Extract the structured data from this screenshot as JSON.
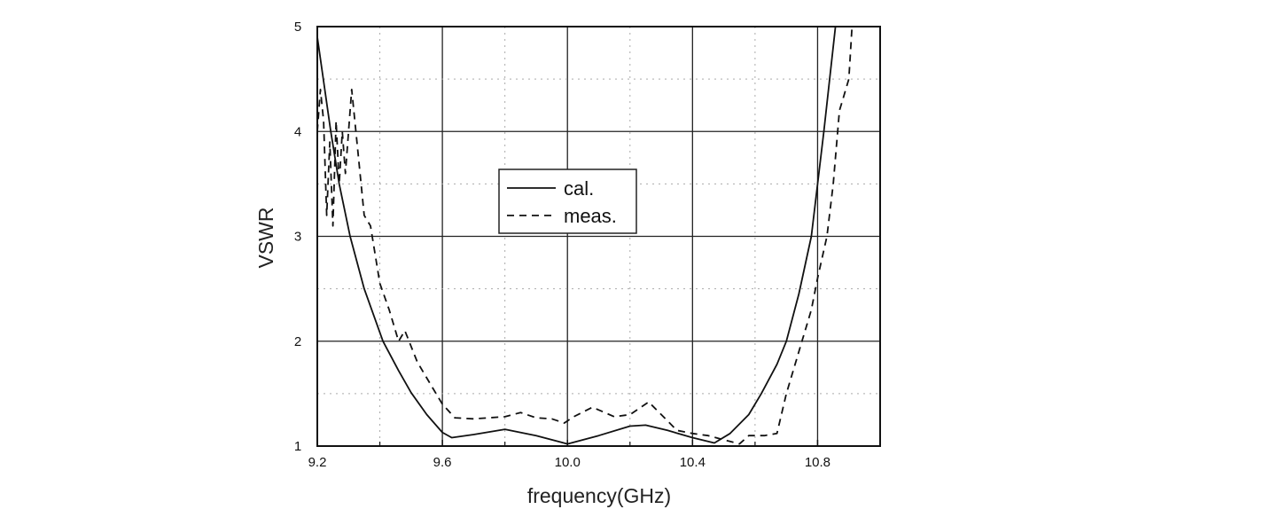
{
  "chart_data": {
    "type": "line",
    "xlabel": "frequency(GHz)",
    "ylabel": "VSWR",
    "xlim": [
      9.2,
      11.0
    ],
    "ylim": [
      1,
      5
    ],
    "xticks": [
      "9.2",
      "9.6",
      "10.0",
      "10.4",
      "10.8"
    ],
    "xtick_values": [
      9.2,
      9.6,
      10.0,
      10.4,
      10.8
    ],
    "yticks": [
      "1",
      "2",
      "3",
      "4",
      "5"
    ],
    "ytick_values": [
      1,
      2,
      3,
      4,
      5
    ],
    "grid": true,
    "minor_grid": "dotted",
    "legend_position": "center-left",
    "series": [
      {
        "name": "cal.",
        "style": "solid",
        "color": "#111111",
        "x": [
          9.2,
          9.243,
          9.27,
          9.305,
          9.35,
          9.41,
          9.46,
          9.5,
          9.55,
          9.6,
          9.63,
          9.7,
          9.8,
          9.9,
          10.0,
          10.1,
          10.2,
          10.25,
          10.32,
          10.4,
          10.47,
          10.52,
          10.58,
          10.62,
          10.67,
          10.7,
          10.74,
          10.78,
          10.82,
          10.857
        ],
        "y": [
          4.9,
          4.0,
          3.5,
          3.0,
          2.5,
          2.0,
          1.72,
          1.51,
          1.3,
          1.13,
          1.08,
          1.11,
          1.16,
          1.1,
          1.02,
          1.1,
          1.19,
          1.2,
          1.15,
          1.08,
          1.03,
          1.12,
          1.3,
          1.5,
          1.78,
          2.0,
          2.45,
          3.0,
          4.0,
          5.0
        ]
      },
      {
        "name": "meas.",
        "style": "dashed",
        "color": "#111111",
        "x": [
          9.2,
          9.21,
          9.22,
          9.23,
          9.24,
          9.25,
          9.26,
          9.27,
          9.28,
          9.29,
          9.31,
          9.33,
          9.35,
          9.37,
          9.4,
          9.43,
          9.46,
          9.48,
          9.52,
          9.57,
          9.6,
          9.64,
          9.7,
          9.8,
          9.85,
          9.9,
          9.95,
          9.99,
          10.02,
          10.08,
          10.15,
          10.2,
          10.26,
          10.3,
          10.35,
          10.4,
          10.45,
          10.5,
          10.55,
          10.58,
          10.63,
          10.67,
          10.7,
          10.75,
          10.78,
          10.8,
          10.83,
          10.85,
          10.87,
          10.88,
          10.9,
          10.91
        ],
        "y": [
          4.0,
          4.4,
          4.1,
          3.2,
          3.9,
          3.1,
          4.1,
          3.5,
          4.0,
          3.6,
          4.4,
          3.8,
          3.2,
          3.1,
          2.55,
          2.3,
          2.0,
          2.1,
          1.8,
          1.55,
          1.4,
          1.27,
          1.26,
          1.28,
          1.32,
          1.27,
          1.26,
          1.22,
          1.28,
          1.37,
          1.28,
          1.3,
          1.42,
          1.3,
          1.15,
          1.12,
          1.1,
          1.06,
          1.02,
          1.1,
          1.1,
          1.12,
          1.5,
          2.0,
          2.3,
          2.6,
          3.0,
          3.5,
          4.2,
          4.3,
          4.5,
          5.0
        ]
      }
    ]
  }
}
